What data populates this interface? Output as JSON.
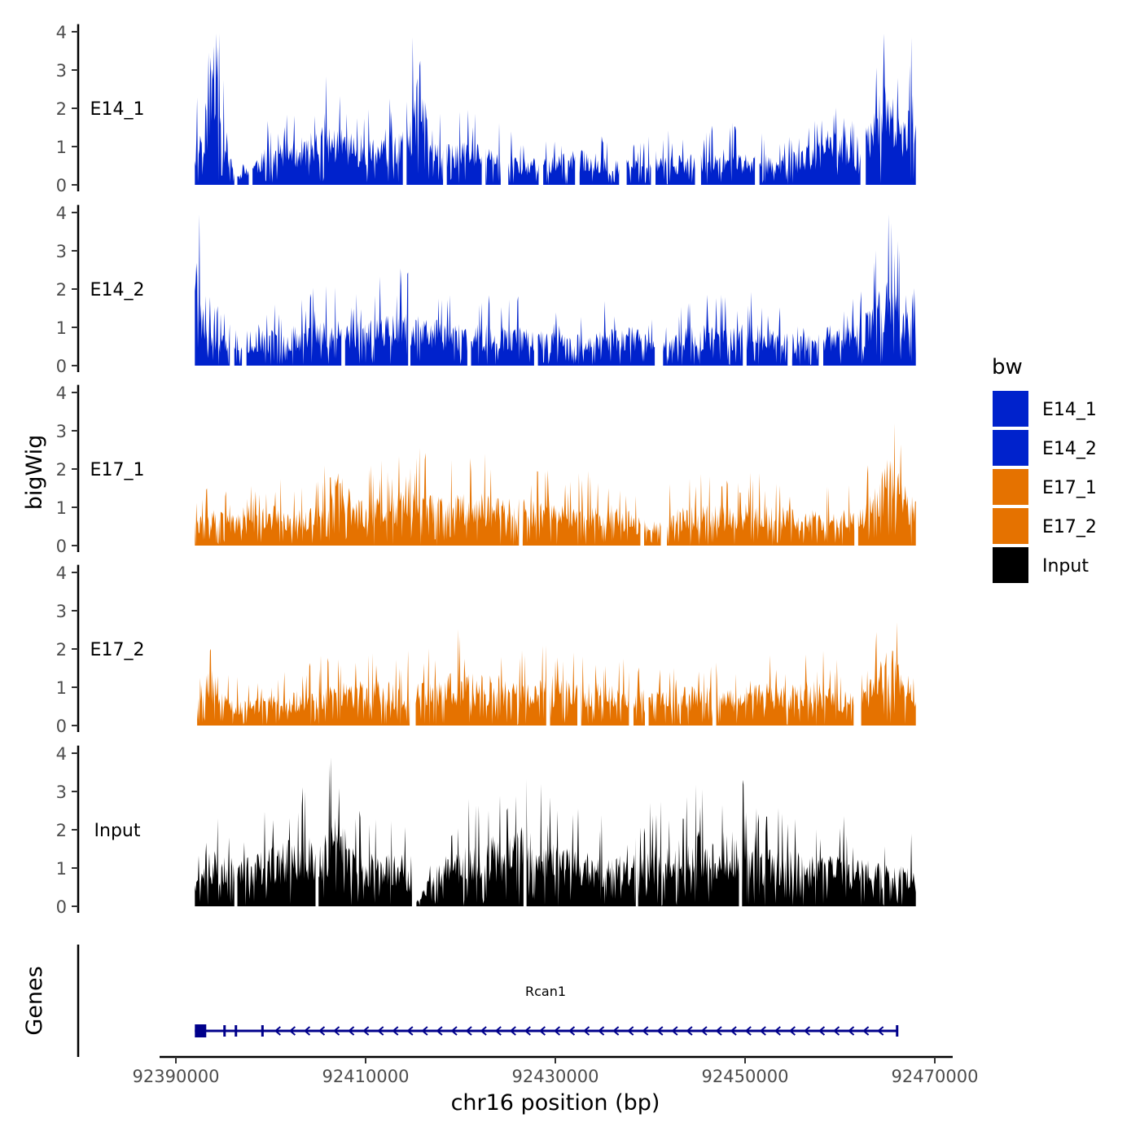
{
  "chart_data": {
    "type": "area",
    "title": "",
    "ylabel": "bigWig",
    "xlabel": "chr16 position (bp)",
    "xlim": [
      92392000,
      92468000
    ],
    "ylim": [
      0,
      4
    ],
    "y_ticks": [
      "0",
      "1",
      "2",
      "3",
      "4"
    ],
    "x_ticks": [
      {
        "value": 92390000,
        "label": "92390000"
      },
      {
        "value": 92410000,
        "label": "92410000"
      },
      {
        "value": 92430000,
        "label": "92430000"
      },
      {
        "value": 92450000,
        "label": "92450000"
      },
      {
        "value": 92470000,
        "label": "92470000"
      }
    ],
    "legend": {
      "title": "bw",
      "entries": [
        {
          "name": "E14_1",
          "color": "#0022CC"
        },
        {
          "name": "E14_2",
          "color": "#0022CC"
        },
        {
          "name": "E17_1",
          "color": "#E57200"
        },
        {
          "name": "E17_2",
          "color": "#E57200"
        },
        {
          "name": "Input",
          "color": "#000000"
        }
      ]
    },
    "series": [
      {
        "name": "E14_1",
        "color": "#0022CC",
        "seed": 11,
        "x": [
          92392000,
          92392800,
          92393500,
          92394000,
          92395000,
          92396500,
          92397500,
          92400000,
          92403000,
          92406000,
          92409000,
          92412000,
          92414500,
          92415700,
          92416500,
          92418000,
          92421000,
          92424000,
          92427000,
          92430000,
          92433000,
          92436000,
          92439000,
          92442000,
          92445000,
          92448000,
          92451000,
          92454000,
          92457000,
          92459000,
          92461000,
          92462000,
          92463500,
          92464800,
          92466000,
          92467000,
          92468000
        ],
        "y": [
          0.9,
          1.4,
          2.0,
          3.6,
          1.3,
          0.2,
          0.4,
          0.8,
          0.9,
          1.2,
          1.0,
          0.9,
          1.1,
          2.5,
          1.4,
          0.8,
          0.9,
          0.7,
          0.5,
          0.6,
          0.7,
          0.5,
          0.5,
          0.6,
          0.6,
          0.7,
          0.6,
          0.6,
          0.8,
          1.1,
          0.9,
          0.6,
          1.8,
          2.0,
          1.6,
          1.2,
          2.6
        ],
        "gaps": [
          [
            92396200,
            92396400
          ],
          [
            92397700,
            92398000
          ],
          [
            92414000,
            92414300
          ],
          [
            92418200,
            92418500
          ],
          [
            92422300,
            92422600
          ],
          [
            92424300,
            92425000
          ],
          [
            92428300,
            92428700
          ],
          [
            92432100,
            92432500
          ],
          [
            92436800,
            92437500
          ],
          [
            92440100,
            92440500
          ],
          [
            92444800,
            92445300
          ],
          [
            92451100,
            92451500
          ],
          [
            92462200,
            92462700
          ]
        ]
      },
      {
        "name": "E14_2",
        "color": "#0022CC",
        "seed": 23,
        "x": [
          92392000,
          92393000,
          92394500,
          92396000,
          92398000,
          92400000,
          92403000,
          92406000,
          92409000,
          92412000,
          92414000,
          92415000,
          92417500,
          92420000,
          92423000,
          92426000,
          92429000,
          92432000,
          92435000,
          92438000,
          92440000,
          92442000,
          92444000,
          92447000,
          92450000,
          92453000,
          92456000,
          92459000,
          92462000,
          92464000,
          92465000,
          92466000,
          92467000,
          92468000
        ],
        "y": [
          2.5,
          1.0,
          0.7,
          0.4,
          0.4,
          0.7,
          0.8,
          0.9,
          0.9,
          1.0,
          1.2,
          1.0,
          0.9,
          0.8,
          0.8,
          0.8,
          0.7,
          0.6,
          0.7,
          0.8,
          0.6,
          0.5,
          0.8,
          0.8,
          0.9,
          0.7,
          0.6,
          0.8,
          0.8,
          1.4,
          2.2,
          1.5,
          1.1,
          1.6
        ],
        "gaps": [
          [
            92395700,
            92396100
          ],
          [
            92397000,
            92397400
          ],
          [
            92407500,
            92407800
          ],
          [
            92414500,
            92414700
          ],
          [
            92420800,
            92421100
          ],
          [
            92427800,
            92428100
          ],
          [
            92440500,
            92441300
          ],
          [
            92449800,
            92450100
          ],
          [
            92454500,
            92454900
          ],
          [
            92457800,
            92458200
          ]
        ]
      },
      {
        "name": "E17_1",
        "color": "#E57200",
        "seed": 37,
        "x": [
          92392000,
          92394000,
          92397000,
          92400000,
          92403000,
          92405500,
          92406500,
          92409000,
          92412000,
          92415000,
          92418000,
          92421000,
          92424000,
          92427000,
          92430000,
          92433000,
          92436000,
          92439000,
          92442000,
          92445000,
          92448000,
          92451000,
          92454000,
          92457000,
          92460000,
          92462000,
          92463500,
          92465000,
          92466500,
          92468000
        ],
        "y": [
          0.6,
          0.7,
          0.6,
          0.8,
          0.7,
          0.8,
          1.7,
          0.9,
          1.0,
          1.1,
          1.0,
          1.1,
          1.0,
          0.9,
          0.8,
          0.9,
          0.8,
          0.6,
          0.7,
          0.8,
          0.8,
          0.9,
          0.8,
          0.7,
          0.7,
          0.7,
          1.2,
          1.8,
          1.4,
          1.0
        ],
        "gaps": [
          [
            92426200,
            92426500
          ],
          [
            92439000,
            92439300
          ],
          [
            92441200,
            92441700
          ],
          [
            92461600,
            92461900
          ]
        ]
      },
      {
        "name": "E17_2",
        "color": "#E57200",
        "seed": 53,
        "x": [
          92392000,
          92392800,
          92394000,
          92397000,
          92400000,
          92403000,
          92406000,
          92409000,
          92412000,
          92415000,
          92418000,
          92421000,
          92424000,
          92427000,
          92430000,
          92433000,
          92436000,
          92439000,
          92442000,
          92445000,
          92448000,
          92451000,
          92454000,
          92457000,
          92460000,
          92462000,
          92463500,
          92465000,
          92466500,
          92468000
        ],
        "y": [
          0.6,
          1.5,
          0.7,
          0.5,
          0.6,
          0.7,
          0.8,
          0.9,
          0.9,
          0.8,
          1.0,
          1.1,
          1.0,
          0.8,
          1.0,
          0.9,
          0.8,
          0.7,
          0.7,
          0.8,
          0.7,
          0.9,
          0.8,
          0.9,
          0.7,
          0.6,
          1.0,
          1.6,
          1.2,
          1.0
        ],
        "gaps": [
          [
            92392000,
            92392200
          ],
          [
            92414700,
            92415200
          ],
          [
            92429100,
            92429400
          ],
          [
            92432400,
            92432700
          ],
          [
            92437800,
            92438200
          ],
          [
            92439500,
            92439800
          ],
          [
            92446600,
            92446900
          ],
          [
            92461500,
            92462200
          ]
        ]
      },
      {
        "name": "Input",
        "color": "#000000",
        "seed": 71,
        "x": [
          92392000,
          92393000,
          92395000,
          92397000,
          92400000,
          92403000,
          92405500,
          92406500,
          92409000,
          92412000,
          92414000,
          92415500,
          92417000,
          92420000,
          92423000,
          92425000,
          92426000,
          92429000,
          92432000,
          92435000,
          92438000,
          92441000,
          92443000,
          92445000,
          92447000,
          92449000,
          92451000,
          92454000,
          92457000,
          92460000,
          92463000,
          92466000,
          92468000
        ],
        "y": [
          0.5,
          1.0,
          1.2,
          0.9,
          1.2,
          1.4,
          1.3,
          2.0,
          1.1,
          1.0,
          1.1,
          0.1,
          0.9,
          1.1,
          1.4,
          1.3,
          1.7,
          1.3,
          1.1,
          1.0,
          1.0,
          1.2,
          1.3,
          1.6,
          1.5,
          1.5,
          1.2,
          1.1,
          1.0,
          1.0,
          0.9,
          0.8,
          0.8
        ],
        "gaps": [
          [
            92396200,
            92396400
          ],
          [
            92404800,
            92405000
          ],
          [
            92414900,
            92415300
          ],
          [
            92426700,
            92426900
          ],
          [
            92438500,
            92438700
          ],
          [
            92449400,
            92449600
          ]
        ]
      }
    ],
    "genes_track": {
      "ylabel": "Genes",
      "genes": [
        {
          "name": "Rcan1",
          "strand": "-",
          "start": 92392000,
          "end": 92466000,
          "exons": [
            [
              92392000,
              92393200
            ],
            [
              92395000,
              92395150
            ],
            [
              92396200,
              92396300
            ],
            [
              92399000,
              92399100
            ],
            [
              92465900,
              92466000
            ]
          ],
          "color": "#00008B"
        }
      ]
    }
  }
}
